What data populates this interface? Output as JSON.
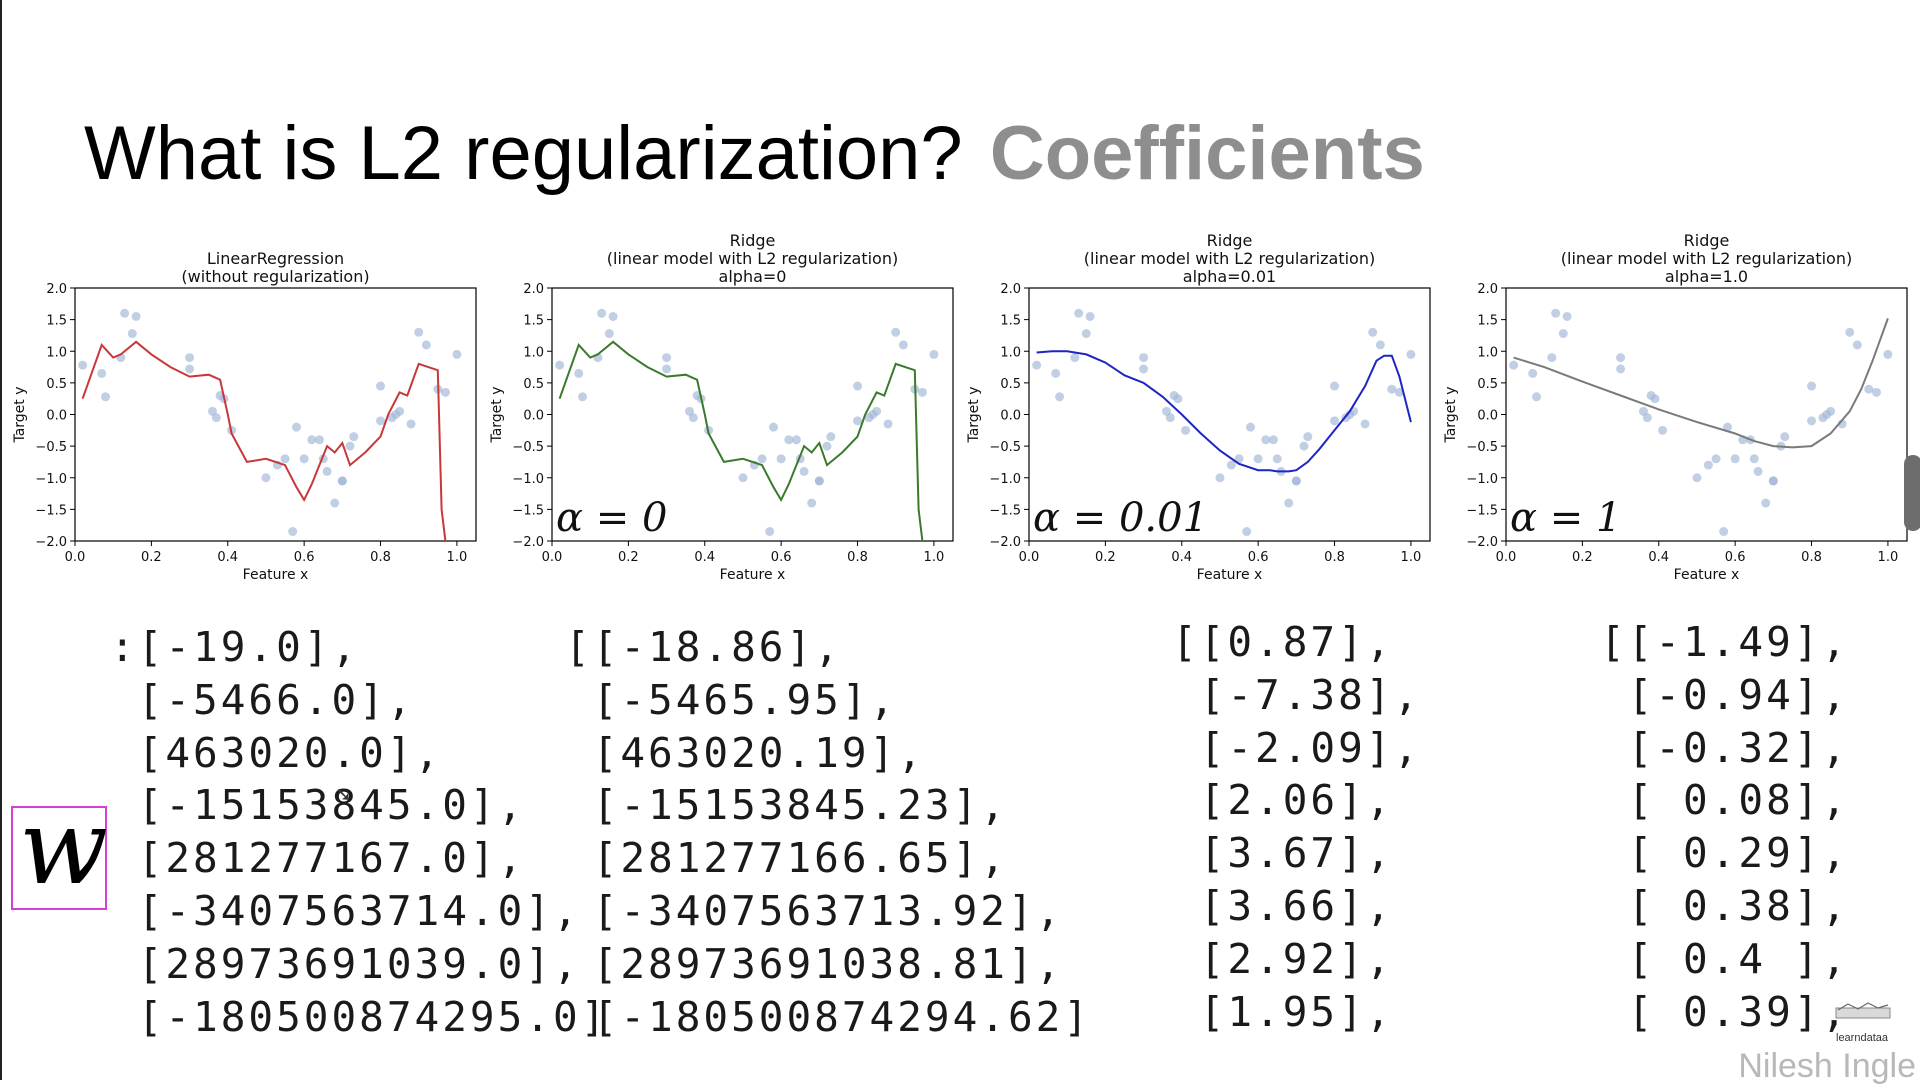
{
  "slide": {
    "title_main": "What is L2 regularization?",
    "title_accent": "Coefficients",
    "w_symbol": "w",
    "watermark": "Nilesh Ingle",
    "logo_text": "learndataa",
    "colors": {
      "title_accent": "#8e8e8e",
      "w_box_border": "#d63fd6"
    }
  },
  "chart_data": [
    {
      "type": "line",
      "title": [
        "LinearRegression",
        "(without regularization)"
      ],
      "xlabel": "Feature x",
      "ylabel": "Target y",
      "xlim": [
        0.0,
        1.05
      ],
      "ylim": [
        -2.0,
        2.0
      ],
      "xticks": [
        "0.0",
        "0.2",
        "0.4",
        "0.6",
        "0.8",
        "1.0"
      ],
      "yticks": [
        "2.0",
        "1.5",
        "1.0",
        "0.5",
        "0.0",
        "−0.5",
        "−1.0",
        "−1.5",
        "−2.0"
      ],
      "annotation": "",
      "line_color": "#c8373a",
      "line": {
        "x": [
          0.02,
          0.07,
          0.1,
          0.12,
          0.16,
          0.2,
          0.25,
          0.3,
          0.35,
          0.38,
          0.4,
          0.41,
          0.45,
          0.5,
          0.55,
          0.58,
          0.6,
          0.62,
          0.64,
          0.66,
          0.68,
          0.7,
          0.72,
          0.76,
          0.8,
          0.82,
          0.85,
          0.87,
          0.9,
          0.95,
          0.96,
          0.97
        ],
        "y": [
          0.25,
          1.1,
          0.9,
          0.95,
          1.15,
          0.95,
          0.75,
          0.6,
          0.63,
          0.55,
          0.0,
          -0.3,
          -0.75,
          -0.7,
          -0.8,
          -1.15,
          -1.35,
          -1.1,
          -0.8,
          -0.5,
          -0.6,
          -0.45,
          -0.8,
          -0.6,
          -0.35,
          0.0,
          0.35,
          0.3,
          0.8,
          0.7,
          -1.5,
          -2.0
        ]
      },
      "scatter": {
        "x": [
          0.02,
          0.07,
          0.08,
          0.12,
          0.13,
          0.16,
          0.15,
          0.3,
          0.3,
          0.36,
          0.38,
          0.37,
          0.39,
          0.41,
          0.5,
          0.53,
          0.55,
          0.57,
          0.58,
          0.6,
          0.62,
          0.64,
          0.65,
          0.66,
          0.68,
          0.7,
          0.7,
          0.72,
          0.73,
          0.8,
          0.8,
          0.83,
          0.84,
          0.85,
          0.88,
          0.9,
          0.92,
          0.95,
          0.97,
          1.0
        ],
        "y": [
          0.78,
          0.65,
          0.28,
          0.9,
          1.6,
          1.55,
          1.28,
          0.9,
          0.72,
          0.05,
          0.3,
          -0.05,
          0.25,
          -0.25,
          -1.0,
          -0.8,
          -0.7,
          -1.85,
          -0.2,
          -0.7,
          -0.4,
          -0.4,
          -0.7,
          -0.9,
          -1.4,
          -1.05,
          -1.05,
          -0.5,
          -0.35,
          0.45,
          -0.1,
          -0.05,
          0.0,
          0.05,
          -0.15,
          1.3,
          1.1,
          0.4,
          0.35,
          0.95
        ]
      }
    },
    {
      "type": "line",
      "title": [
        "Ridge",
        "(linear model with L2 regularization)",
        "alpha=0"
      ],
      "xlabel": "Feature x",
      "ylabel": "Target y",
      "xlim": [
        0.0,
        1.05
      ],
      "ylim": [
        -2.0,
        2.0
      ],
      "xticks": [
        "0.0",
        "0.2",
        "0.4",
        "0.6",
        "0.8",
        "1.0"
      ],
      "yticks": [
        "2.0",
        "1.5",
        "1.0",
        "0.5",
        "0.0",
        "−0.5",
        "−1.0",
        "−1.5",
        "−2.0"
      ],
      "annotation": "α = 0",
      "line_color": "#3a7a2c",
      "line": {
        "x": [
          0.02,
          0.07,
          0.1,
          0.12,
          0.16,
          0.2,
          0.25,
          0.3,
          0.35,
          0.38,
          0.4,
          0.41,
          0.45,
          0.5,
          0.55,
          0.58,
          0.6,
          0.62,
          0.64,
          0.66,
          0.68,
          0.7,
          0.72,
          0.76,
          0.8,
          0.82,
          0.85,
          0.87,
          0.9,
          0.95,
          0.96,
          0.97
        ],
        "y": [
          0.25,
          1.1,
          0.9,
          0.95,
          1.15,
          0.95,
          0.75,
          0.6,
          0.63,
          0.55,
          0.0,
          -0.3,
          -0.75,
          -0.7,
          -0.8,
          -1.15,
          -1.35,
          -1.1,
          -0.8,
          -0.5,
          -0.6,
          -0.45,
          -0.8,
          -0.6,
          -0.35,
          0.0,
          0.35,
          0.3,
          0.8,
          0.7,
          -1.5,
          -2.0
        ]
      },
      "scatter": {
        "x": [
          0.02,
          0.07,
          0.08,
          0.12,
          0.13,
          0.16,
          0.15,
          0.3,
          0.3,
          0.36,
          0.38,
          0.37,
          0.39,
          0.41,
          0.5,
          0.53,
          0.55,
          0.57,
          0.58,
          0.6,
          0.62,
          0.64,
          0.65,
          0.66,
          0.68,
          0.7,
          0.7,
          0.72,
          0.73,
          0.8,
          0.8,
          0.83,
          0.84,
          0.85,
          0.88,
          0.9,
          0.92,
          0.95,
          0.97,
          1.0
        ],
        "y": [
          0.78,
          0.65,
          0.28,
          0.9,
          1.6,
          1.55,
          1.28,
          0.9,
          0.72,
          0.05,
          0.3,
          -0.05,
          0.25,
          -0.25,
          -1.0,
          -0.8,
          -0.7,
          -1.85,
          -0.2,
          -0.7,
          -0.4,
          -0.4,
          -0.7,
          -0.9,
          -1.4,
          -1.05,
          -1.05,
          -0.5,
          -0.35,
          0.45,
          -0.1,
          -0.05,
          0.0,
          0.05,
          -0.15,
          1.3,
          1.1,
          0.4,
          0.35,
          0.95
        ]
      }
    },
    {
      "type": "line",
      "title": [
        "Ridge",
        "(linear model with L2 regularization)",
        "alpha=0.01"
      ],
      "xlabel": "Feature x",
      "ylabel": "Target y",
      "xlim": [
        0.0,
        1.05
      ],
      "ylim": [
        -2.0,
        2.0
      ],
      "xticks": [
        "0.0",
        "0.2",
        "0.4",
        "0.6",
        "0.8",
        "1.0"
      ],
      "yticks": [
        "2.0",
        "1.5",
        "1.0",
        "0.5",
        "0.0",
        "−0.5",
        "−1.0",
        "−1.5",
        "−2.0"
      ],
      "annotation": "α = 0.01",
      "line_color": "#1f24c4",
      "line": {
        "x": [
          0.02,
          0.06,
          0.1,
          0.15,
          0.2,
          0.25,
          0.3,
          0.35,
          0.4,
          0.45,
          0.5,
          0.55,
          0.6,
          0.63,
          0.65,
          0.68,
          0.7,
          0.73,
          0.76,
          0.8,
          0.84,
          0.88,
          0.91,
          0.93,
          0.95,
          0.97,
          1.0
        ],
        "y": [
          0.98,
          1.0,
          1.0,
          0.95,
          0.82,
          0.62,
          0.5,
          0.28,
          0.0,
          -0.3,
          -0.57,
          -0.78,
          -0.88,
          -0.88,
          -0.9,
          -0.9,
          -0.88,
          -0.75,
          -0.55,
          -0.25,
          0.05,
          0.45,
          0.85,
          0.93,
          0.93,
          0.6,
          -0.12
        ]
      },
      "scatter": {
        "x": [
          0.02,
          0.07,
          0.08,
          0.12,
          0.13,
          0.16,
          0.15,
          0.3,
          0.3,
          0.36,
          0.38,
          0.37,
          0.39,
          0.41,
          0.5,
          0.53,
          0.55,
          0.57,
          0.58,
          0.6,
          0.62,
          0.64,
          0.65,
          0.66,
          0.68,
          0.7,
          0.7,
          0.72,
          0.73,
          0.8,
          0.8,
          0.83,
          0.84,
          0.85,
          0.88,
          0.9,
          0.92,
          0.95,
          0.97,
          1.0
        ],
        "y": [
          0.78,
          0.65,
          0.28,
          0.9,
          1.6,
          1.55,
          1.28,
          0.9,
          0.72,
          0.05,
          0.3,
          -0.05,
          0.25,
          -0.25,
          -1.0,
          -0.8,
          -0.7,
          -1.85,
          -0.2,
          -0.7,
          -0.4,
          -0.4,
          -0.7,
          -0.9,
          -1.4,
          -1.05,
          -1.05,
          -0.5,
          -0.35,
          0.45,
          -0.1,
          -0.05,
          0.0,
          0.05,
          -0.15,
          1.3,
          1.1,
          0.4,
          0.35,
          0.95
        ]
      }
    },
    {
      "type": "line",
      "title": [
        "Ridge",
        "(linear model with L2 regularization)",
        "alpha=1.0"
      ],
      "xlabel": "Feature x",
      "ylabel": "Target y",
      "xlim": [
        0.0,
        1.05
      ],
      "ylim": [
        -2.0,
        2.0
      ],
      "xticks": [
        "0.0",
        "0.2",
        "0.4",
        "0.6",
        "0.8",
        "1.0"
      ],
      "yticks": [
        "2.0",
        "1.5",
        "1.0",
        "0.5",
        "0.0",
        "−0.5",
        "−1.0",
        "−1.5",
        "−2.0"
      ],
      "annotation": "α = 1",
      "line_color": "#7a7a7a",
      "line": {
        "x": [
          0.02,
          0.1,
          0.2,
          0.3,
          0.4,
          0.5,
          0.6,
          0.65,
          0.7,
          0.75,
          0.8,
          0.85,
          0.9,
          0.93,
          0.96,
          1.0
        ],
        "y": [
          0.9,
          0.75,
          0.52,
          0.3,
          0.08,
          -0.12,
          -0.3,
          -0.42,
          -0.5,
          -0.52,
          -0.5,
          -0.3,
          0.05,
          0.4,
          0.85,
          1.52
        ]
      },
      "scatter": {
        "x": [
          0.02,
          0.07,
          0.08,
          0.12,
          0.13,
          0.16,
          0.15,
          0.3,
          0.3,
          0.36,
          0.38,
          0.37,
          0.39,
          0.41,
          0.5,
          0.53,
          0.55,
          0.57,
          0.58,
          0.6,
          0.62,
          0.64,
          0.65,
          0.66,
          0.68,
          0.7,
          0.7,
          0.72,
          0.73,
          0.8,
          0.8,
          0.83,
          0.84,
          0.85,
          0.88,
          0.9,
          0.92,
          0.95,
          0.97,
          1.0
        ],
        "y": [
          0.78,
          0.65,
          0.28,
          0.9,
          1.6,
          1.55,
          1.28,
          0.9,
          0.72,
          0.05,
          0.3,
          -0.05,
          0.25,
          -0.25,
          -1.0,
          -0.8,
          -0.7,
          -1.85,
          -0.2,
          -0.7,
          -0.4,
          -0.4,
          -0.7,
          -0.9,
          -1.4,
          -1.05,
          -1.05,
          -0.5,
          -0.35,
          0.45,
          -0.1,
          -0.05,
          0.0,
          0.05,
          -0.15,
          1.3,
          1.1,
          0.4,
          0.35,
          0.95
        ]
      }
    }
  ],
  "coefficients": [
    {
      "lines": [
        ":[-19.0],",
        " [-5466.0],",
        " [463020.0],",
        " [-15153845.0],",
        " [281277167.0],",
        " [-3407563714.0],",
        " [28973691039.0],",
        " [-180500874295.0]"
      ]
    },
    {
      "lines": [
        "[[-18.86],",
        " [-5465.95],",
        " [463020.19],",
        " [-15153845.23],",
        " [281277166.65],",
        " [-3407563713.92],",
        " [28973691038.81],",
        " [-180500874294.62]"
      ]
    },
    {
      "lines": [
        "[[0.87],",
        " [-7.38],",
        " [-2.09],",
        " [2.06],",
        " [3.67],",
        " [3.66],",
        " [2.92],",
        " [1.95],"
      ]
    },
    {
      "lines": [
        "[[-1.49],",
        " [-0.94],",
        " [-0.32],",
        " [ 0.08],",
        " [ 0.29],",
        " [ 0.38],",
        " [ 0.4 ],",
        " [ 0.39],"
      ]
    }
  ]
}
